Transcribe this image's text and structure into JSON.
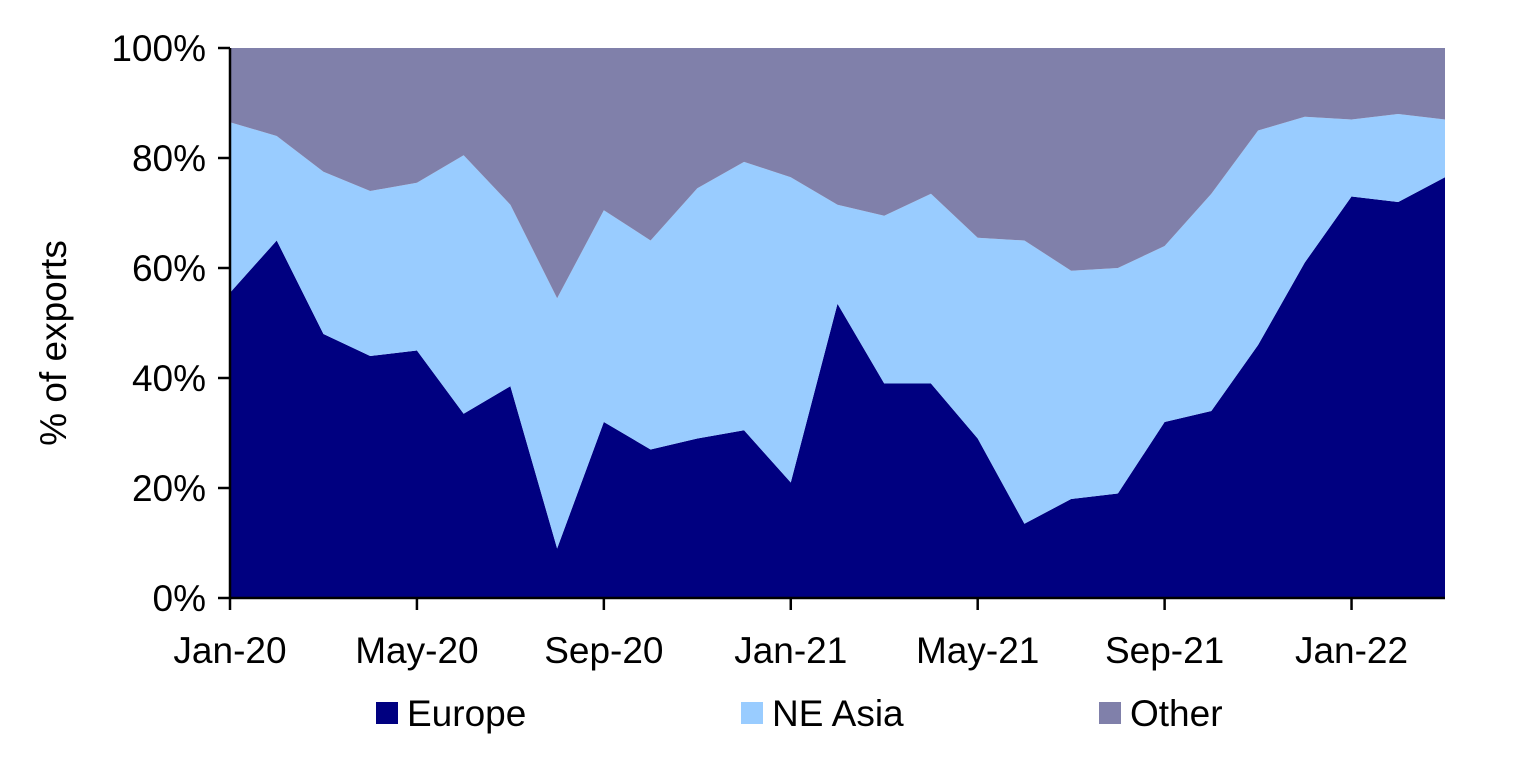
{
  "chart_data": {
    "type": "area",
    "stacked": true,
    "percent_stacked": true,
    "x": [
      "Jan-20",
      "Feb-20",
      "Mar-20",
      "Apr-20",
      "May-20",
      "Jun-20",
      "Jul-20",
      "Aug-20",
      "Sep-20",
      "Oct-20",
      "Nov-20",
      "Dec-20",
      "Jan-21",
      "Feb-21",
      "Mar-21",
      "Apr-21",
      "May-21",
      "Jun-21",
      "Jul-21",
      "Aug-21",
      "Sep-21",
      "Oct-21",
      "Nov-21",
      "Dec-21",
      "Jan-22",
      "Feb-22",
      "Mar-22"
    ],
    "x_tick_labels": [
      "Jan-20",
      "May-20",
      "Sep-20",
      "Jan-21",
      "May-21",
      "Sep-21",
      "Jan-22"
    ],
    "x_tick_indices": [
      0,
      4,
      8,
      12,
      16,
      20,
      24
    ],
    "y_tick_labels": [
      "0%",
      "20%",
      "40%",
      "60%",
      "80%",
      "100%"
    ],
    "ylim": [
      0,
      100
    ],
    "ylabel": "% of exports",
    "xlabel": "",
    "legend_position": "bottom",
    "series": [
      {
        "name": "Europe",
        "color": "#000080",
        "values": [
          55.5,
          65,
          48,
          44,
          45,
          33.5,
          38.5,
          9,
          32,
          27,
          29,
          30.5,
          21,
          53.5,
          39,
          39,
          29,
          13.5,
          18,
          19,
          32,
          34,
          46,
          61,
          73,
          72,
          76.5
        ]
      },
      {
        "name": "NE Asia",
        "color": "#99CCFF",
        "values": [
          31,
          19,
          29.5,
          30,
          30.5,
          47,
          33,
          45.5,
          38.5,
          38,
          45.5,
          48.8,
          55.5,
          18,
          30.5,
          34.5,
          36.5,
          51.5,
          41.5,
          41,
          32,
          39.5,
          39,
          26.5,
          14,
          16,
          10.5
        ]
      },
      {
        "name": "Other",
        "color": "#8080AA",
        "values": [
          13.5,
          16,
          22.5,
          26,
          24.5,
          19.5,
          28.5,
          45.5,
          29.5,
          35,
          25.5,
          20.7,
          23.5,
          28.5,
          30.5,
          26.5,
          34.5,
          35,
          40.5,
          40,
          36,
          26.5,
          15,
          12.5,
          13,
          12,
          13
        ]
      }
    ]
  }
}
